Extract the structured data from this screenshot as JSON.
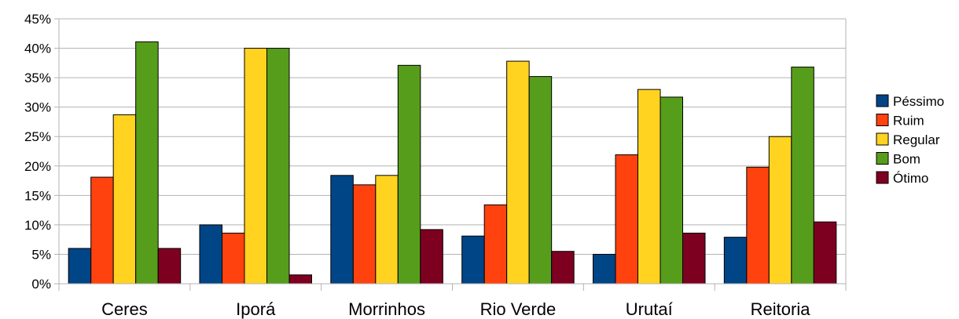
{
  "chart_data": {
    "type": "bar",
    "title": "",
    "xlabel": "",
    "ylabel": "",
    "categories": [
      "Ceres",
      "Iporá",
      "Morrinhos",
      "Rio Verde",
      "Urutaí",
      "Reitoria"
    ],
    "series": [
      {
        "name": "Péssimo",
        "color": "#004586",
        "values": [
          6,
          10,
          18.4,
          8.1,
          5,
          7.9
        ]
      },
      {
        "name": "Ruim",
        "color": "#ff420e",
        "values": [
          18.1,
          8.6,
          16.8,
          13.4,
          21.9,
          19.8
        ]
      },
      {
        "name": "Regular",
        "color": "#ffd320",
        "values": [
          28.7,
          40,
          18.4,
          37.8,
          33,
          25
        ]
      },
      {
        "name": "Bom",
        "color": "#579d1c",
        "values": [
          41.1,
          40,
          37.1,
          35.2,
          31.7,
          36.8
        ]
      },
      {
        "name": "Ótimo",
        "color": "#7e0021",
        "values": [
          6,
          1.5,
          9.2,
          5.5,
          8.6,
          10.5
        ]
      }
    ],
    "ylim": [
      0,
      45
    ],
    "yticks": [
      "0%",
      "5%",
      "10%",
      "15%",
      "20%",
      "25%",
      "30%",
      "35%",
      "40%",
      "45%"
    ],
    "grid": true,
    "legend_position": "right"
  }
}
